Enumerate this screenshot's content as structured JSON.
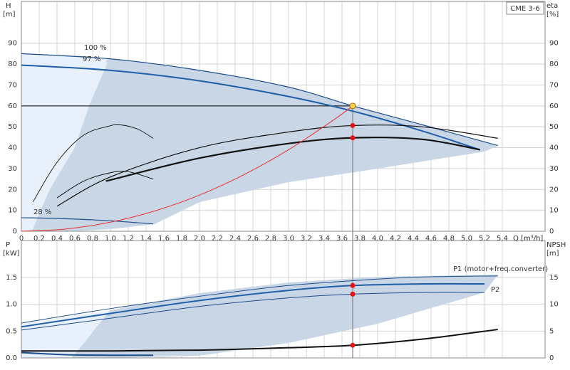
{
  "chart_data": [
    {
      "type": "line",
      "y_label": "H",
      "y_unit": "[m]",
      "y2_label": "eta",
      "y2_unit": "[%]",
      "x_label": "Q [m³/h]",
      "product": "CME 3-6",
      "xlim": [
        0,
        5.88
      ],
      "ylim": [
        0,
        110
      ],
      "y2lim": [
        0,
        110
      ],
      "xticks": [
        0,
        0.2,
        0.4,
        0.6,
        0.8,
        {
          "value": 1,
          "label": "1.0"
        },
        1.2,
        1.4,
        1.6,
        1.8,
        {
          "value": 2,
          "label": "2.0"
        },
        2.2,
        2.4,
        2.6,
        2.8,
        {
          "value": 3,
          "label": "3.0"
        },
        3.2,
        3.4,
        3.6,
        3.8,
        {
          "value": 4,
          "label": "4.0"
        },
        4.2,
        4.4,
        4.6,
        4.8,
        {
          "value": 5,
          "label": "5.0"
        },
        5.2,
        5.4
      ],
      "yticks": [
        0,
        10,
        20,
        30,
        40,
        50,
        60,
        70,
        80,
        90
      ],
      "y2ticks": [
        0,
        10,
        20,
        30,
        40,
        50,
        60,
        70,
        80,
        90
      ],
      "grid": true,
      "annotations": [
        "100 %",
        "97 %",
        "28 %"
      ],
      "duty_point": {
        "x": 3.72,
        "y": 60,
        "color": "#ffd24a"
      },
      "series": [
        {
          "color": "#1f4e8c",
          "width": 1.2,
          "x": [
            0,
            1,
            2,
            3,
            3.72,
            4.5,
            5.35
          ],
          "values": [
            85,
            82.5,
            77,
            69,
            60,
            51,
            41
          ]
        },
        {
          "color": "#1f5fa8",
          "width": 2,
          "x": [
            0,
            1,
            2,
            3,
            3.72,
            4.5,
            5.15
          ],
          "values": [
            79.5,
            77,
            72,
            64.5,
            57.5,
            48,
            39
          ]
        },
        {
          "color": "#1f4e8c",
          "width": 1.2,
          "x": [
            0,
            0.5,
            1,
            1.48
          ],
          "values": [
            6.5,
            6,
            5,
            3.5
          ]
        },
        {
          "color": "#111",
          "width": 1.2,
          "x": [
            0.4,
            1,
            2,
            3,
            3.72,
            4.5,
            5.35
          ],
          "values": [
            12,
            26,
            40,
            47.5,
            50.6,
            50,
            44.5
          ]
        },
        {
          "color": "#111",
          "width": 2.2,
          "x": [
            0.95,
            2,
            3,
            3.72,
            4.5,
            5.15
          ],
          "values": [
            24,
            35,
            42,
            44.7,
            44,
            39
          ]
        },
        {
          "color": "#111",
          "width": 0.9,
          "x": [
            0.13,
            0.4,
            0.7,
            1,
            1.1,
            1.3,
            1.48
          ],
          "values": [
            14,
            33,
            46,
            50.5,
            51,
            49,
            44.5
          ]
        },
        {
          "color": "#111",
          "width": 1,
          "x": [
            0.4,
            0.7,
            1,
            1.2,
            1.48
          ],
          "values": [
            16,
            24,
            28,
            28.5,
            25
          ]
        },
        {
          "color": "#e83030",
          "width": 1,
          "x": [
            0,
            0.5,
            1,
            1.5,
            2,
            2.5,
            3,
            3.5,
            3.72
          ],
          "values": [
            0,
            1.08,
            4.34,
            9.75,
            17.3,
            27.1,
            39,
            53.1,
            60
          ]
        },
        {
          "color": "#e81010",
          "marker": true,
          "x": [
            3.72,
            3.72
          ],
          "values": [
            50.6,
            44.7
          ]
        }
      ]
    },
    {
      "type": "line",
      "y_label": "P",
      "y_unit": "[kW]",
      "y2_label": "NPSH",
      "y2_unit": "[m]",
      "xlim": [
        0,
        5.88
      ],
      "ylim": [
        0,
        2.19
      ],
      "y2lim": [
        0,
        21.9
      ],
      "yticks": [
        {
          "value": 0,
          "label": "0.0"
        },
        0.5,
        {
          "value": 1,
          "label": "1.0"
        },
        1.5
      ],
      "y2ticks": [
        0,
        5,
        10,
        15
      ],
      "grid": true,
      "annotations": [
        "P1 (motor+freq.converter)",
        "P2"
      ],
      "series": [
        {
          "color": "#1f4e8c",
          "width": 1,
          "x": [
            0,
            1,
            2,
            3,
            4,
            4.5,
            5.35
          ],
          "values": [
            0.65,
            0.92,
            1.15,
            1.35,
            1.47,
            1.51,
            1.53
          ]
        },
        {
          "color": "#1f5fa8",
          "width": 2,
          "x": [
            0,
            1,
            2,
            3,
            3.72,
            4.5,
            5.2
          ],
          "values": [
            0.58,
            0.83,
            1.07,
            1.26,
            1.35,
            1.38,
            1.38
          ]
        },
        {
          "color": "#1f4e8c",
          "width": 1,
          "x": [
            0,
            1,
            2,
            3,
            3.72,
            4.5,
            5.2
          ],
          "values": [
            0.52,
            0.74,
            0.96,
            1.12,
            1.19,
            1.22,
            1.22
          ]
        },
        {
          "color": "#1f4e8c",
          "width": 2,
          "x": [
            0,
            0.5,
            1,
            1.48
          ],
          "values": [
            0.1,
            0.06,
            0.05,
            0.05
          ]
        },
        {
          "color": "#111",
          "width": 2,
          "axis": "y2",
          "x": [
            0,
            1,
            2,
            3,
            3.72,
            4.5,
            5.35
          ],
          "values": [
            1.3,
            1.3,
            1.45,
            1.9,
            2.35,
            3.5,
            5.3
          ]
        },
        {
          "color": "#e81010",
          "marker": true,
          "x": [
            3.72,
            3.72
          ],
          "values": [
            1.35,
            1.19
          ]
        },
        {
          "color": "#e81010",
          "marker": true,
          "axis": "y2",
          "x": [
            3.72
          ],
          "values": [
            2.35
          ]
        }
      ]
    }
  ]
}
